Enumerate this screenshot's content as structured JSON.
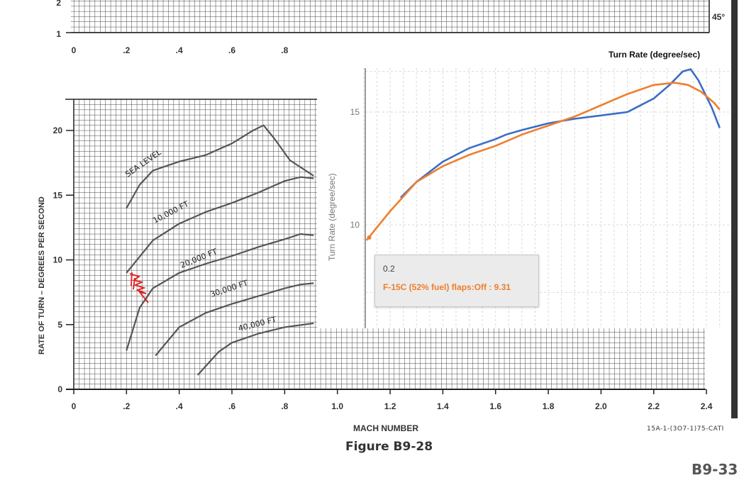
{
  "document": {
    "figure_caption": "Figure B9-28",
    "page_number": "B9-33",
    "doc_ref": "15A-1-(3O7-1)75-CATI",
    "x_axis_label": "MACH NUMBER",
    "y_axis_label": "RATE OF TURN – DEGREES PER SECOND",
    "bank_angle_label": "45°",
    "x_ticks": [
      "0",
      ".2",
      ".4",
      ".6",
      ".8",
      "1.0",
      "1.2",
      "1.4",
      "1.6",
      "1.8",
      "2.0",
      "2.2",
      "2.4"
    ],
    "y_ticks": [
      "0",
      "5",
      "10",
      "15",
      "20"
    ],
    "top_y_ticks": [
      "1",
      "2"
    ],
    "top_x_ticks": [
      "0",
      ".2",
      ".4",
      ".6",
      ".8"
    ],
    "altitude_labels": [
      "SEA LEVEL",
      "10,000 FT",
      "20,000 FT",
      "30,000 FT",
      "40,000 FT"
    ]
  },
  "overlay": {
    "title": "Turn Rate (degree/sec)",
    "ylabel": "Turn Rate (degree/sec)",
    "y_ticks": [
      "10",
      "15"
    ],
    "colors": {
      "blue": "#3b6dc7",
      "orange": "#ee7f2d",
      "grid": "#d8d8d8"
    }
  },
  "tooltip": {
    "x_value": "0.2",
    "series_text": "F-15C (52% fuel) flaps:Off : 9.31",
    "color": "#ee7f2d"
  },
  "chart_data": [
    {
      "type": "line",
      "title": "",
      "xlabel": "MACH NUMBER",
      "ylabel": "RATE OF TURN – DEGREES PER SECOND",
      "xlim": [
        0,
        2.4
      ],
      "ylim": [
        0,
        22
      ],
      "series": [
        {
          "name": "SEA LEVEL",
          "x": [
            0.2,
            0.25,
            0.3,
            0.4,
            0.5,
            0.6,
            0.68,
            0.72,
            0.76,
            0.82,
            0.91
          ],
          "y": [
            14.0,
            15.8,
            16.9,
            17.6,
            18.1,
            19.0,
            20.0,
            20.4,
            19.4,
            17.7,
            16.5
          ]
        },
        {
          "name": "10,000 FT",
          "x": [
            0.2,
            0.3,
            0.4,
            0.5,
            0.6,
            0.7,
            0.8,
            0.86,
            0.91
          ],
          "y": [
            9.0,
            11.5,
            12.8,
            13.7,
            14.4,
            15.2,
            16.1,
            16.4,
            16.3
          ]
        },
        {
          "name": "20,000 FT",
          "x": [
            0.2,
            0.25,
            0.3,
            0.4,
            0.5,
            0.6,
            0.7,
            0.8,
            0.86,
            0.91
          ],
          "y": [
            3.0,
            6.3,
            7.8,
            9.0,
            9.7,
            10.3,
            11.0,
            11.6,
            12.0,
            11.9
          ]
        },
        {
          "name": "30,000 FT",
          "x": [
            0.31,
            0.4,
            0.5,
            0.6,
            0.7,
            0.8,
            0.86,
            0.91
          ],
          "y": [
            2.6,
            4.8,
            5.9,
            6.6,
            7.2,
            7.8,
            8.1,
            8.2
          ]
        },
        {
          "name": "40,000 FT",
          "x": [
            0.47,
            0.55,
            0.6,
            0.7,
            0.8,
            0.91
          ],
          "y": [
            1.1,
            2.9,
            3.6,
            4.3,
            4.8,
            5.1
          ]
        }
      ]
    },
    {
      "type": "line",
      "title": "Turn Rate (degree/sec)",
      "xlabel": "",
      "ylabel": "Turn Rate (degree/sec)",
      "xlim": [
        0,
        2.4
      ],
      "ylim": [
        5.5,
        17
      ],
      "series": [
        {
          "name": "",
          "color": "#3b6dc7",
          "x": [
            1.24,
            1.3,
            1.4,
            1.5,
            1.6,
            1.64,
            1.7,
            1.8,
            1.9,
            2.0,
            2.1,
            2.2,
            2.26,
            2.31,
            2.34,
            2.37,
            2.42,
            2.45
          ],
          "y": [
            11.2,
            11.9,
            12.8,
            13.4,
            13.8,
            14.0,
            14.2,
            14.5,
            14.7,
            14.85,
            15.0,
            15.6,
            16.2,
            16.8,
            16.9,
            16.4,
            15.2,
            14.3
          ]
        },
        {
          "name": "F-15C (52% fuel) flaps:Off",
          "color": "#ee7f2d",
          "x": [
            1.11,
            1.2,
            1.3,
            1.4,
            1.5,
            1.6,
            1.7,
            1.8,
            1.9,
            2.0,
            2.1,
            2.2,
            2.28,
            2.33,
            2.38,
            2.43,
            2.45
          ],
          "y": [
            9.31,
            10.6,
            11.9,
            12.6,
            13.1,
            13.5,
            14.0,
            14.4,
            14.8,
            15.3,
            15.8,
            16.2,
            16.3,
            16.2,
            15.9,
            15.4,
            15.1
          ]
        }
      ]
    }
  ]
}
